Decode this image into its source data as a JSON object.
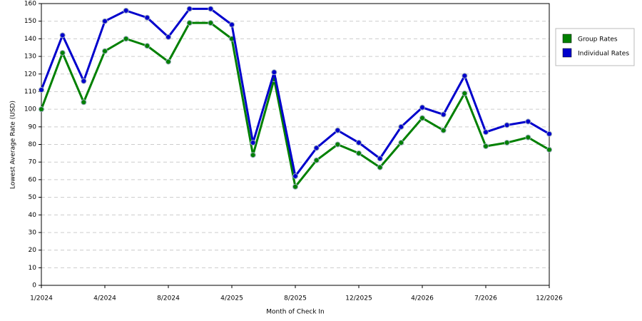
{
  "chart_data": {
    "type": "line",
    "x_label": "Month of Check In",
    "y_label": "Lowest Average Rate (USD)",
    "categories": [
      "1/2024",
      null,
      null,
      "4/2024",
      null,
      null,
      "8/2024",
      null,
      null,
      "4/2025",
      null,
      null,
      "8/2025",
      null,
      null,
      "12/2025",
      null,
      null,
      "4/2026",
      null,
      null,
      "7/2026",
      null,
      null,
      "12/2026"
    ],
    "series": [
      {
        "name": "Group Rates",
        "color": "#008000",
        "values": [
          100,
          132,
          104,
          133,
          140,
          136,
          127,
          149,
          149,
          140,
          74,
          117,
          56,
          71,
          80,
          75,
          67,
          81,
          95,
          88,
          109,
          79,
          81,
          84,
          77
        ]
      },
      {
        "name": "Individual Rates",
        "color": "#0000cc",
        "values": [
          111,
          142,
          116,
          150,
          156,
          152,
          141,
          157,
          157,
          148,
          81,
          121,
          62,
          78,
          88,
          81,
          72,
          90,
          101,
          97,
          119,
          87,
          91,
          93,
          86
        ]
      }
    ],
    "ylim": [
      0,
      160
    ],
    "yticks": [
      0,
      10,
      20,
      30,
      40,
      50,
      60,
      70,
      80,
      90,
      100,
      110,
      120,
      130,
      140,
      150,
      160
    ],
    "grid": true,
    "legend": "top-right"
  }
}
